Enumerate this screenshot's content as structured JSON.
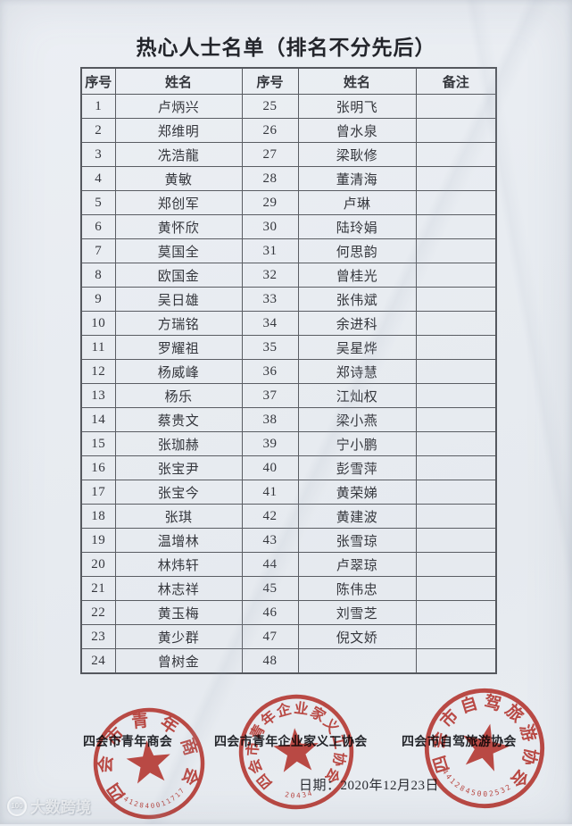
{
  "page": {
    "title": "热心人士名单（排名不分先后）"
  },
  "table": {
    "headers": [
      "序号",
      "姓名",
      "序号",
      "姓名",
      "备注"
    ],
    "rows": [
      {
        "no_left": "1",
        "name_left": "卢炳兴",
        "no_right": "25",
        "name_right": "张明飞",
        "remark": ""
      },
      {
        "no_left": "2",
        "name_left": "郑维明",
        "no_right": "26",
        "name_right": "曾水泉",
        "remark": ""
      },
      {
        "no_left": "3",
        "name_left": "冼浩龍",
        "no_right": "27",
        "name_right": "梁耿修",
        "remark": ""
      },
      {
        "no_left": "4",
        "name_left": "黄敏",
        "no_right": "28",
        "name_right": "董清海",
        "remark": ""
      },
      {
        "no_left": "5",
        "name_left": "郑创军",
        "no_right": "29",
        "name_right": "卢琳",
        "remark": ""
      },
      {
        "no_left": "6",
        "name_left": "黄怀欣",
        "no_right": "30",
        "name_right": "陆玲娟",
        "remark": ""
      },
      {
        "no_left": "7",
        "name_left": "莫国全",
        "no_right": "31",
        "name_right": "何思韵",
        "remark": ""
      },
      {
        "no_left": "8",
        "name_left": "欧国金",
        "no_right": "32",
        "name_right": "曾桂光",
        "remark": ""
      },
      {
        "no_left": "9",
        "name_left": "吴日雄",
        "no_right": "33",
        "name_right": "张伟斌",
        "remark": ""
      },
      {
        "no_left": "10",
        "name_left": "方瑞铭",
        "no_right": "34",
        "name_right": "余进科",
        "remark": ""
      },
      {
        "no_left": "11",
        "name_left": "罗耀祖",
        "no_right": "35",
        "name_right": "吴星烨",
        "remark": ""
      },
      {
        "no_left": "12",
        "name_left": "杨威峰",
        "no_right": "36",
        "name_right": "郑诗慧",
        "remark": ""
      },
      {
        "no_left": "13",
        "name_left": "杨乐",
        "no_right": "37",
        "name_right": "江灿权",
        "remark": ""
      },
      {
        "no_left": "14",
        "name_left": "蔡贵文",
        "no_right": "38",
        "name_right": "梁小燕",
        "remark": ""
      },
      {
        "no_left": "15",
        "name_left": "张珈赫",
        "no_right": "39",
        "name_right": "宁小鹏",
        "remark": ""
      },
      {
        "no_left": "16",
        "name_left": "张宝尹",
        "no_right": "40",
        "name_right": "彭雪萍",
        "remark": ""
      },
      {
        "no_left": "17",
        "name_left": "张宝今",
        "no_right": "41",
        "name_right": "黄荣娣",
        "remark": ""
      },
      {
        "no_left": "18",
        "name_left": "张琪",
        "no_right": "42",
        "name_right": "黄建波",
        "remark": ""
      },
      {
        "no_left": "19",
        "name_left": "温增林",
        "no_right": "43",
        "name_right": "张雪琼",
        "remark": ""
      },
      {
        "no_left": "20",
        "name_left": "林炜轩",
        "no_right": "44",
        "name_right": "卢翠琼",
        "remark": ""
      },
      {
        "no_left": "21",
        "name_left": "林志祥",
        "no_right": "45",
        "name_right": "陈伟忠",
        "remark": ""
      },
      {
        "no_left": "22",
        "name_left": "黄玉梅",
        "no_right": "46",
        "name_right": "刘雪芝",
        "remark": ""
      },
      {
        "no_left": "23",
        "name_left": "黄少群",
        "no_right": "47",
        "name_right": "倪文娇",
        "remark": ""
      },
      {
        "no_left": "24",
        "name_left": "曾树金",
        "no_right": "48",
        "name_right": "",
        "remark": ""
      }
    ]
  },
  "footer": {
    "org1": "四会市青年商会",
    "org2": "四会市青年企业家义工协会",
    "org3": "四会市自驾旅游协会",
    "date_label": "日期：",
    "date": "2020年12月23日"
  },
  "stamps": [
    {
      "ring": "四会市青年商会",
      "serial": "4412840011717"
    },
    {
      "ring": "四会市青年企业家义工协会",
      "serial": "20434"
    },
    {
      "ring": "四会市自驾旅游协会",
      "serial": "4412845002532"
    }
  ],
  "watermark": {
    "logo": "100",
    "text": "大数跨境"
  },
  "colors": {
    "stamp_red": "#c5362e",
    "paper": "#e9edf2"
  }
}
